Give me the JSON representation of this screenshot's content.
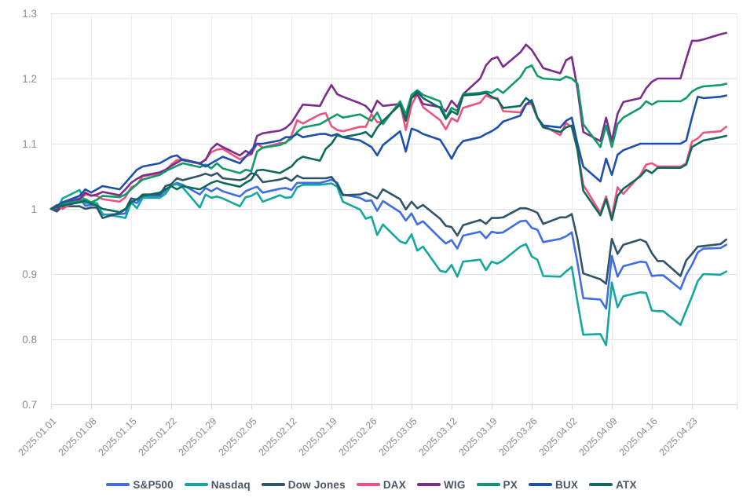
{
  "chart_data": {
    "type": "line",
    "title": "",
    "xlabel": "",
    "ylabel": "",
    "ylim": [
      0.7,
      1.3
    ],
    "grid": true,
    "legend_position": "bottom",
    "y_ticks": {
      "labels": [
        "1.3",
        "1.2",
        "1.1",
        "1",
        "0.9",
        "0.8",
        "0.7"
      ],
      "values": [
        1.3,
        1.2,
        1.1,
        1.0,
        0.9,
        0.8,
        0.7
      ]
    },
    "x_tick_labels": [
      "2025.01.01",
      "2025.01.08",
      "2025.01.15",
      "2025.01.22",
      "2025.01.29",
      "2025.02.05",
      "2025.02.12",
      "2025.02.19",
      "2025.02.26",
      "2025.03.05",
      "2025.03.12",
      "2025.03.19",
      "2025.03.26",
      "2025.04.02",
      "2025.04.09",
      "2025.04.16",
      "2025.04.23"
    ],
    "x_tick_dates": [
      "2025-01-01",
      "2025-01-08",
      "2025-01-15",
      "2025-01-22",
      "2025-01-29",
      "2025-02-05",
      "2025-02-12",
      "2025-02-19",
      "2025-02-26",
      "2025-03-05",
      "2025-03-12",
      "2025-03-19",
      "2025-03-26",
      "2025-04-02",
      "2025-04-09",
      "2025-04-16",
      "2025-04-23"
    ],
    "dates": [
      "2025-01-01",
      "2025-01-02",
      "2025-01-03",
      "2025-01-06",
      "2025-01-07",
      "2025-01-08",
      "2025-01-09",
      "2025-01-10",
      "2025-01-13",
      "2025-01-14",
      "2025-01-15",
      "2025-01-16",
      "2025-01-17",
      "2025-01-20",
      "2025-01-21",
      "2025-01-22",
      "2025-01-23",
      "2025-01-24",
      "2025-01-27",
      "2025-01-28",
      "2025-01-29",
      "2025-01-30",
      "2025-01-31",
      "2025-02-03",
      "2025-02-04",
      "2025-02-05",
      "2025-02-06",
      "2025-02-07",
      "2025-02-10",
      "2025-02-11",
      "2025-02-12",
      "2025-02-13",
      "2025-02-14",
      "2025-02-17",
      "2025-02-18",
      "2025-02-19",
      "2025-02-20",
      "2025-02-21",
      "2025-02-24",
      "2025-02-25",
      "2025-02-26",
      "2025-02-27",
      "2025-02-28",
      "2025-03-03",
      "2025-03-04",
      "2025-03-05",
      "2025-03-06",
      "2025-03-07",
      "2025-03-10",
      "2025-03-11",
      "2025-03-12",
      "2025-03-13",
      "2025-03-14",
      "2025-03-17",
      "2025-03-18",
      "2025-03-19",
      "2025-03-20",
      "2025-03-21",
      "2025-03-24",
      "2025-03-25",
      "2025-03-26",
      "2025-03-27",
      "2025-03-28",
      "2025-03-31",
      "2025-04-01",
      "2025-04-02",
      "2025-04-03",
      "2025-04-04",
      "2025-04-07",
      "2025-04-08",
      "2025-04-09",
      "2025-04-10",
      "2025-04-11",
      "2025-04-14",
      "2025-04-15",
      "2025-04-16",
      "2025-04-17",
      "2025-04-18",
      "2025-04-21",
      "2025-04-22",
      "2025-04-23",
      "2025-04-24",
      "2025-04-25",
      "2025-04-28",
      "2025-04-29"
    ],
    "series": [
      {
        "name": "S&P500",
        "color": "#3E6DE8",
        "values": [
          1.0,
          0.998,
          1.01,
          1.016,
          1.005,
          1.006,
          1.006,
          0.991,
          0.992,
          0.993,
          1.012,
          1.009,
          1.02,
          1.02,
          1.028,
          1.035,
          1.04,
          1.037,
          1.022,
          1.032,
          1.027,
          1.032,
          1.027,
          1.019,
          1.027,
          1.031,
          1.034,
          1.025,
          1.031,
          1.032,
          1.029,
          1.04,
          1.04,
          1.04,
          1.042,
          1.045,
          1.04,
          1.022,
          1.017,
          1.012,
          1.013,
          0.997,
          1.012,
          0.995,
          0.982,
          0.993,
          0.976,
          0.981,
          0.955,
          0.947,
          0.952,
          0.939,
          0.959,
          0.965,
          0.955,
          0.965,
          0.963,
          0.964,
          0.981,
          0.982,
          0.971,
          0.968,
          0.949,
          0.954,
          0.958,
          0.964,
          0.917,
          0.863,
          0.861,
          0.847,
          0.928,
          0.896,
          0.912,
          0.919,
          0.918,
          0.897,
          0.898,
          0.898,
          0.877,
          0.899,
          0.914,
          0.933,
          0.939,
          0.94,
          0.945
        ]
      },
      {
        "name": "Nasdaq",
        "color": "#13A79F",
        "values": [
          1.0,
          0.998,
          1.016,
          1.029,
          1.009,
          1.009,
          1.009,
          0.992,
          0.988,
          0.986,
          1.01,
          1.001,
          1.017,
          1.017,
          1.023,
          1.036,
          1.038,
          1.033,
          1.002,
          1.022,
          1.017,
          1.019,
          1.016,
          1.004,
          1.018,
          1.02,
          1.025,
          1.011,
          1.021,
          1.017,
          1.018,
          1.033,
          1.037,
          1.037,
          1.038,
          1.039,
          1.034,
          1.011,
          0.999,
          0.985,
          0.988,
          0.96,
          0.976,
          0.95,
          0.947,
          0.961,
          0.936,
          0.942,
          0.905,
          0.903,
          0.914,
          0.896,
          0.919,
          0.922,
          0.906,
          0.919,
          0.916,
          0.921,
          0.942,
          0.946,
          0.927,
          0.922,
          0.897,
          0.896,
          0.904,
          0.911,
          0.857,
          0.807,
          0.808,
          0.791,
          0.887,
          0.849,
          0.866,
          0.872,
          0.871,
          0.844,
          0.843,
          0.843,
          0.822,
          0.844,
          0.865,
          0.889,
          0.9,
          0.899,
          0.904
        ]
      },
      {
        "name": "Dow Jones",
        "color": "#2F5368",
        "values": [
          1.0,
          0.996,
          1.004,
          1.004,
          1.0,
          1.002,
          1.002,
          0.986,
          0.994,
          0.999,
          1.016,
          1.014,
          1.022,
          1.022,
          1.035,
          1.038,
          1.047,
          1.044,
          1.051,
          1.054,
          1.051,
          1.055,
          1.047,
          1.044,
          1.047,
          1.055,
          1.052,
          1.041,
          1.045,
          1.048,
          1.043,
          1.051,
          1.047,
          1.047,
          1.047,
          1.049,
          1.038,
          1.021,
          1.022,
          1.025,
          1.021,
          1.016,
          1.03,
          1.015,
          0.999,
          1.011,
          1.001,
          1.006,
          0.985,
          0.974,
          0.972,
          0.959,
          0.975,
          0.983,
          0.977,
          0.986,
          0.986,
          0.987,
          1.001,
          1.001,
          0.998,
          0.994,
          0.977,
          0.987,
          0.987,
          0.992,
          0.953,
          0.901,
          0.892,
          0.885,
          0.954,
          0.931,
          0.945,
          0.953,
          0.949,
          0.932,
          0.92,
          0.92,
          0.897,
          0.921,
          0.931,
          0.942,
          0.943,
          0.946,
          0.953
        ]
      },
      {
        "name": "DAX",
        "color": "#F0527E",
        "values": [
          1.0,
          1.006,
          1.0,
          1.015,
          1.022,
          1.021,
          1.02,
          1.015,
          1.011,
          1.018,
          1.033,
          1.037,
          1.05,
          1.054,
          1.057,
          1.068,
          1.075,
          1.075,
          1.069,
          1.076,
          1.087,
          1.091,
          1.092,
          1.076,
          1.08,
          1.084,
          1.1,
          1.094,
          1.101,
          1.101,
          1.112,
          1.136,
          1.131,
          1.145,
          1.147,
          1.127,
          1.121,
          1.119,
          1.126,
          1.126,
          1.145,
          1.133,
          1.133,
          1.163,
          1.121,
          1.159,
          1.176,
          1.156,
          1.136,
          1.122,
          1.139,
          1.134,
          1.155,
          1.163,
          1.174,
          1.17,
          1.17,
          1.15,
          1.148,
          1.161,
          1.161,
          1.139,
          1.128,
          1.113,
          1.132,
          1.125,
          1.091,
          1.037,
          0.994,
          1.019,
          0.988,
          1.033,
          1.023,
          1.052,
          1.068,
          1.07,
          1.065,
          1.065,
          1.065,
          1.07,
          1.103,
          1.108,
          1.117,
          1.119,
          1.126
        ]
      },
      {
        "name": "WIG",
        "color": "#7C2C8C",
        "values": [
          1.0,
          0.999,
          1.008,
          1.015,
          1.025,
          1.02,
          1.022,
          1.026,
          1.021,
          1.03,
          1.04,
          1.046,
          1.051,
          1.056,
          1.06,
          1.066,
          1.071,
          1.076,
          1.07,
          1.075,
          1.092,
          1.1,
          1.095,
          1.082,
          1.089,
          1.084,
          1.112,
          1.116,
          1.12,
          1.124,
          1.132,
          1.146,
          1.16,
          1.158,
          1.175,
          1.19,
          1.176,
          1.172,
          1.162,
          1.158,
          1.148,
          1.166,
          1.158,
          1.161,
          1.141,
          1.17,
          1.176,
          1.161,
          1.156,
          1.15,
          1.166,
          1.156,
          1.176,
          1.2,
          1.22,
          1.23,
          1.233,
          1.218,
          1.24,
          1.252,
          1.244,
          1.23,
          1.216,
          1.208,
          1.228,
          1.233,
          1.184,
          1.118,
          1.104,
          1.14,
          1.104,
          1.146,
          1.164,
          1.17,
          1.185,
          1.195,
          1.2,
          1.2,
          1.2,
          1.23,
          1.258,
          1.258,
          1.26,
          1.268,
          1.27
        ]
      },
      {
        "name": "PX",
        "color": "#109A67",
        "values": [
          1.0,
          1.002,
          1.008,
          1.012,
          1.015,
          1.01,
          1.014,
          1.02,
          1.018,
          1.022,
          1.03,
          1.038,
          1.045,
          1.052,
          1.058,
          1.062,
          1.066,
          1.07,
          1.064,
          1.068,
          1.062,
          1.07,
          1.062,
          1.055,
          1.06,
          1.058,
          1.088,
          1.094,
          1.098,
          1.102,
          1.108,
          1.118,
          1.125,
          1.13,
          1.135,
          1.14,
          1.145,
          1.14,
          1.145,
          1.14,
          1.135,
          1.148,
          1.13,
          1.165,
          1.145,
          1.175,
          1.182,
          1.175,
          1.165,
          1.14,
          1.155,
          1.15,
          1.176,
          1.178,
          1.18,
          1.178,
          1.184,
          1.178,
          1.202,
          1.216,
          1.22,
          1.204,
          1.2,
          1.198,
          1.203,
          1.2,
          1.192,
          1.13,
          1.095,
          1.128,
          1.095,
          1.13,
          1.14,
          1.155,
          1.165,
          1.16,
          1.165,
          1.165,
          1.165,
          1.17,
          1.18,
          1.185,
          1.188,
          1.19,
          1.192
        ]
      },
      {
        "name": "BUX",
        "color": "#1D4FAF",
        "values": [
          1.0,
          1.005,
          1.01,
          1.02,
          1.03,
          1.025,
          1.03,
          1.035,
          1.03,
          1.04,
          1.05,
          1.06,
          1.065,
          1.07,
          1.075,
          1.08,
          1.082,
          1.075,
          1.07,
          1.065,
          1.07,
          1.075,
          1.08,
          1.07,
          1.08,
          1.09,
          1.1,
          1.1,
          1.105,
          1.11,
          1.11,
          1.115,
          1.11,
          1.115,
          1.115,
          1.112,
          1.115,
          1.11,
          1.105,
          1.1,
          1.095,
          1.082,
          1.098,
          1.119,
          1.088,
          1.123,
          1.12,
          1.115,
          1.106,
          1.092,
          1.077,
          1.094,
          1.104,
          1.11,
          1.115,
          1.119,
          1.125,
          1.134,
          1.143,
          1.16,
          1.167,
          1.14,
          1.128,
          1.125,
          1.135,
          1.14,
          1.1,
          1.065,
          1.042,
          1.077,
          1.052,
          1.083,
          1.09,
          1.1,
          1.1,
          1.1,
          1.1,
          1.1,
          1.1,
          1.105,
          1.14,
          1.172,
          1.17,
          1.172,
          1.174
        ]
      },
      {
        "name": "ATX",
        "color": "#0C6A5D",
        "values": [
          1.0,
          1.003,
          1.005,
          1.01,
          1.012,
          1.008,
          1.005,
          1.0,
          0.995,
          1.0,
          1.01,
          1.015,
          1.02,
          1.025,
          1.03,
          1.035,
          1.03,
          1.035,
          1.03,
          1.035,
          1.04,
          1.043,
          1.04,
          1.034,
          1.04,
          1.045,
          1.059,
          1.06,
          1.055,
          1.06,
          1.065,
          1.075,
          1.08,
          1.074,
          1.092,
          1.1,
          1.113,
          1.11,
          1.115,
          1.118,
          1.11,
          1.125,
          1.135,
          1.16,
          1.135,
          1.17,
          1.18,
          1.17,
          1.155,
          1.138,
          1.15,
          1.145,
          1.174,
          1.176,
          1.178,
          1.172,
          1.168,
          1.155,
          1.158,
          1.17,
          1.163,
          1.14,
          1.125,
          1.118,
          1.125,
          1.128,
          1.09,
          1.028,
          0.99,
          1.015,
          0.983,
          1.02,
          1.031,
          1.05,
          1.06,
          1.055,
          1.063,
          1.063,
          1.063,
          1.068,
          1.095,
          1.1,
          1.105,
          1.11,
          1.112
        ]
      }
    ],
    "colors": {
      "gridline_h": "#e4e4e4",
      "gridline_v": "#ededed",
      "axis_line": "#d6d6d6",
      "tick_label": "#8c8c8c",
      "legend_text": "#4b5563",
      "background": "#ffffff"
    }
  }
}
